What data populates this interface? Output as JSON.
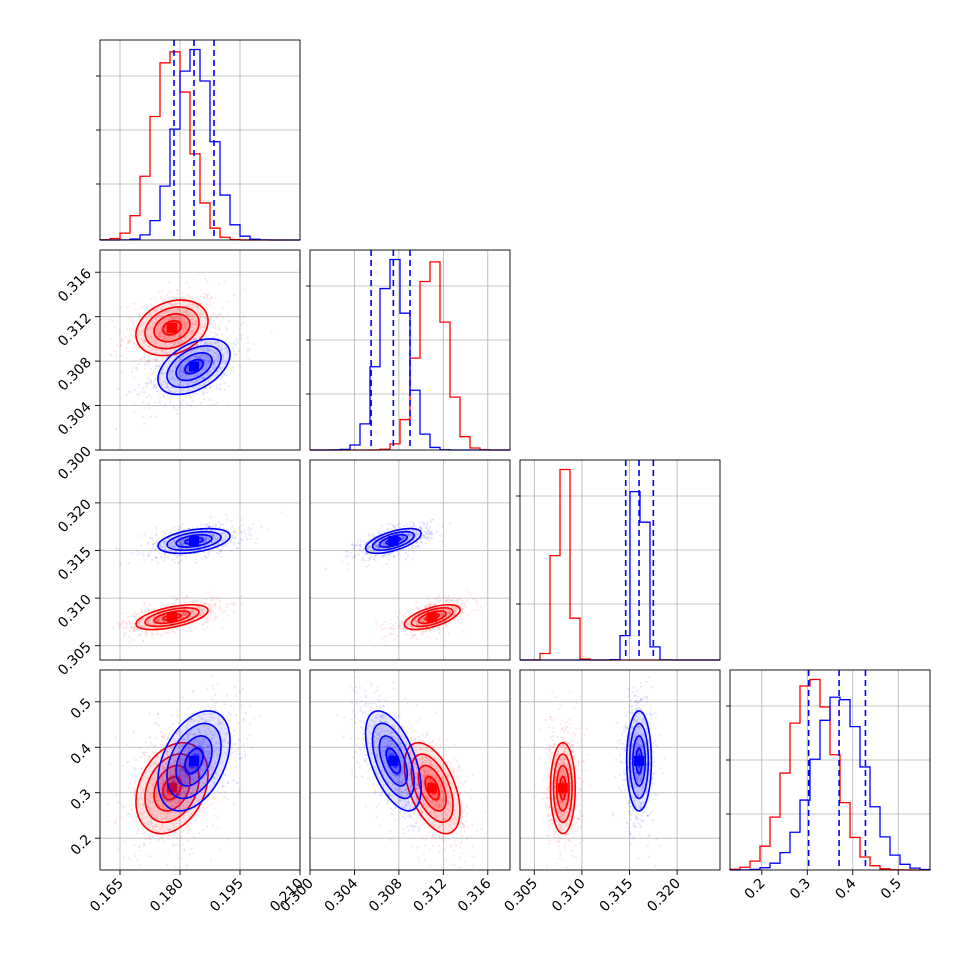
{
  "colors": {
    "red": "#ff0000",
    "blue": "#0000ff",
    "grid": "#b0b0b0",
    "frame": "#000000"
  },
  "chart_data": {
    "type": "corner",
    "grid": true,
    "params": [
      {
        "range": [
          0.16,
          0.21
        ],
        "ticks": [
          0.165,
          0.18,
          0.195,
          0.21
        ],
        "tick_labels": [
          "0.165",
          "0.180",
          "0.195",
          "0.210"
        ]
      },
      {
        "range": [
          0.3,
          0.318
        ],
        "ticks": [
          0.3,
          0.304,
          0.308,
          0.312,
          0.316
        ],
        "tick_labels": [
          "0.300",
          "0.304",
          "0.308",
          "0.312",
          "0.316"
        ]
      },
      {
        "range": [
          0.3035,
          0.3245
        ],
        "ticks": [
          0.305,
          0.31,
          0.315,
          0.32
        ],
        "tick_labels": [
          "0.305",
          "0.310",
          "0.315",
          "0.320"
        ]
      },
      {
        "range": [
          0.13,
          0.57
        ],
        "ticks": [
          0.2,
          0.3,
          0.4,
          0.5
        ],
        "tick_labels": [
          "0.2",
          "0.3",
          "0.4",
          "0.5"
        ]
      }
    ],
    "series": [
      {
        "color": "red",
        "means": [
          0.178,
          0.311,
          0.308,
          0.31
        ],
        "stds": [
          0.0045,
          0.00125,
          0.00065,
          0.05
        ],
        "corr": {
          "0-1": 0.25,
          "0-2": 0.55,
          "1-2": 0.6,
          "0-3": 0.3,
          "1-3": -0.5,
          "2-3": 0.0
        }
      },
      {
        "color": "blue",
        "means": [
          0.1835,
          0.3075,
          0.316,
          0.37
        ],
        "stds": [
          0.0045,
          0.00125,
          0.00065,
          0.055
        ],
        "corr": {
          "0-1": 0.45,
          "0-2": 0.4,
          "1-2": 0.6,
          "0-3": 0.4,
          "1-3": -0.55,
          "2-3": 0.0
        }
      }
    ],
    "quantile_lines": {
      "color": "blue",
      "values": [
        [
          0.1785,
          0.1835,
          0.1885
        ],
        [
          0.3055,
          0.3075,
          0.309
        ],
        [
          0.3146,
          0.316,
          0.3175
        ],
        [
          0.303,
          0.37,
          0.428
        ]
      ]
    }
  }
}
